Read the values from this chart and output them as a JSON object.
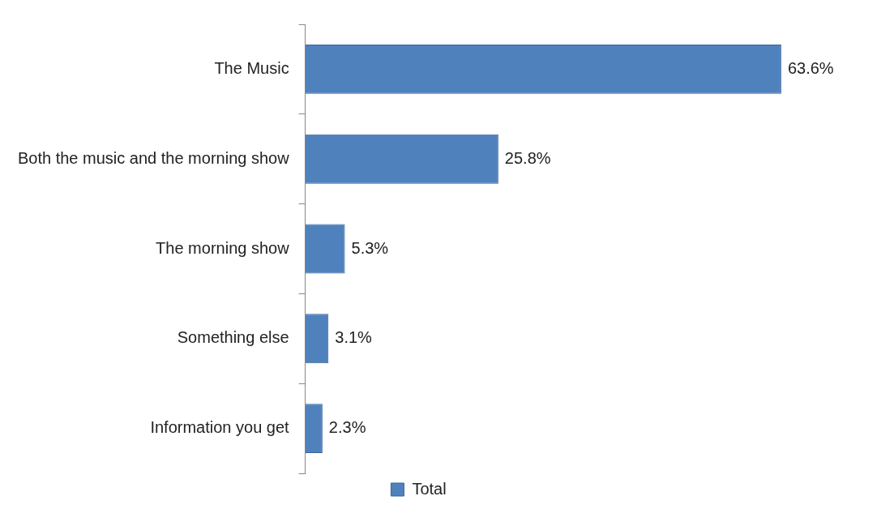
{
  "chart_data": {
    "type": "bar",
    "orientation": "horizontal",
    "categories": [
      "The Music",
      "Both the music and the morning show",
      "The morning show",
      "Something else",
      "Information you get"
    ],
    "series": [
      {
        "name": "Total",
        "color": "#4f81bd",
        "values": [
          63.6,
          25.8,
          5.3,
          3.1,
          2.3
        ],
        "value_labels": [
          "63.6%",
          "25.8%",
          "5.3%",
          "3.1%",
          "2.3%"
        ]
      }
    ],
    "tick_labels": "y",
    "legend": "bottom"
  }
}
